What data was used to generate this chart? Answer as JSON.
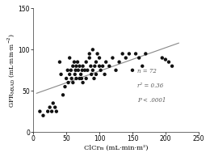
{
  "title": "",
  "xlabel": "ClCrₘ (mL·min·m²)",
  "ylabel": "GFRᴹˣᴬᴰ (mL·min·m²)",
  "xlim": [
    0,
    250
  ],
  "ylim": [
    0,
    150
  ],
  "xticks": [
    0,
    50,
    100,
    150,
    200,
    250
  ],
  "yticks": [
    0,
    50,
    100,
    150
  ],
  "annotation_line1": "n = 72",
  "annotation_line2": "r² = 0.36",
  "annotation_line3": "P < .0001",
  "scatter_color": "#111111",
  "line_color": "#888888",
  "scatter_x": [
    10,
    15,
    22,
    25,
    28,
    30,
    33,
    35,
    40,
    42,
    45,
    48,
    50,
    52,
    53,
    55,
    55,
    57,
    58,
    60,
    60,
    62,
    63,
    64,
    65,
    65,
    67,
    68,
    70,
    70,
    72,
    73,
    74,
    75,
    75,
    78,
    80,
    80,
    82,
    85,
    85,
    87,
    88,
    90,
    90,
    92,
    93,
    95,
    95,
    97,
    100,
    100,
    102,
    105,
    108,
    110,
    115,
    120,
    125,
    130,
    135,
    140,
    145,
    150,
    155,
    160,
    165,
    170,
    195,
    200,
    205,
    210
  ],
  "scatter_y": [
    25,
    20,
    25,
    30,
    25,
    35,
    30,
    25,
    85,
    70,
    45,
    55,
    65,
    75,
    60,
    70,
    90,
    75,
    65,
    60,
    80,
    85,
    70,
    75,
    65,
    80,
    85,
    75,
    65,
    80,
    70,
    65,
    75,
    80,
    60,
    75,
    65,
    85,
    75,
    90,
    95,
    80,
    70,
    100,
    75,
    65,
    80,
    70,
    85,
    95,
    80,
    90,
    75,
    80,
    70,
    85,
    80,
    90,
    75,
    85,
    95,
    90,
    95,
    75,
    95,
    90,
    80,
    95,
    90,
    88,
    85,
    80
  ],
  "line_x0": 5,
  "line_x1": 220,
  "line_y0": 47,
  "line_y1": 108,
  "marker_size": 10,
  "bg_color": "#ffffff",
  "ylabel_plain": "GFR",
  "ylabel_sub": "MXAD",
  "ylabel_units": " (mL·min·m²)"
}
